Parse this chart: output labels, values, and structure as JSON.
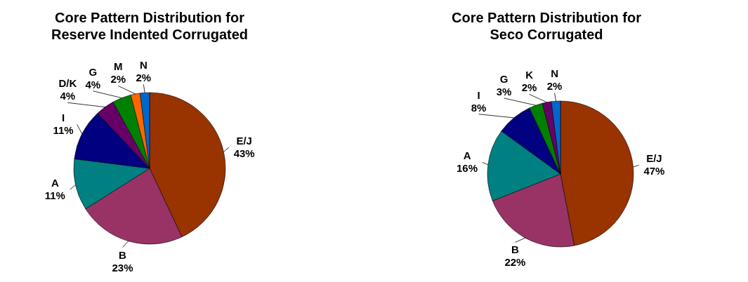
{
  "chart_data": [
    {
      "type": "pie",
      "title": "Core Pattern Distribution for Reserve Indented Corrugated",
      "categories": [
        "E/J",
        "B",
        "A",
        "I",
        "D/K",
        "G",
        "M",
        "N"
      ],
      "values": [
        43,
        23,
        11,
        11,
        4,
        4,
        2,
        2
      ],
      "value_labels": [
        "43%",
        "23%",
        "11%",
        "11%",
        "4%",
        "4%",
        "2%",
        "2%"
      ],
      "colors": [
        "#993300",
        "#993366",
        "#008080",
        "#000080",
        "#660066",
        "#008000",
        "#ff6600",
        "#0066cc"
      ]
    },
    {
      "type": "pie",
      "title": "Core Pattern Distribution for Seco Corrugated",
      "categories": [
        "E/J",
        "B",
        "A",
        "I",
        "G",
        "K",
        "N"
      ],
      "values": [
        47,
        22,
        16,
        8,
        3,
        2,
        2
      ],
      "value_labels": [
        "47%",
        "22%",
        "16%",
        "8%",
        "3%",
        "2%",
        "2%"
      ],
      "colors": [
        "#993300",
        "#993366",
        "#008080",
        "#000080",
        "#008000",
        "#660066",
        "#0066cc"
      ]
    }
  ]
}
